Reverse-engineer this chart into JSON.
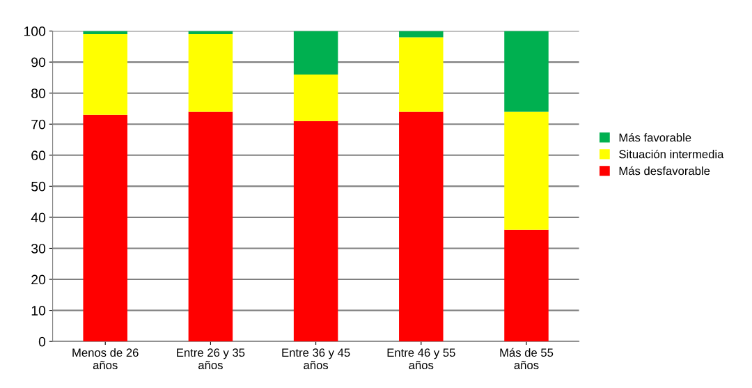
{
  "chart_data": {
    "type": "bar",
    "stacked": true,
    "categories": [
      "Menos de 26\naños",
      "Entre 26 y 35\naños",
      "Entre 36 y 45\naños",
      "Entre 46 y 55\naños",
      "Más de 55\naños"
    ],
    "series": [
      {
        "name": "Más desfavorable",
        "color": "#ff0000",
        "values": [
          73,
          74,
          71,
          74,
          36
        ]
      },
      {
        "name": "Situación intermedia",
        "color": "#ffff00",
        "values": [
          26,
          25,
          15,
          24,
          38
        ]
      },
      {
        "name": "Más favorable",
        "color": "#00b050",
        "values": [
          1,
          1,
          14,
          2,
          26
        ]
      }
    ],
    "ylim": [
      0,
      100
    ],
    "yticks": [
      0,
      10,
      20,
      30,
      40,
      50,
      60,
      70,
      80,
      90,
      100
    ],
    "grid": "y",
    "legend": "right"
  }
}
